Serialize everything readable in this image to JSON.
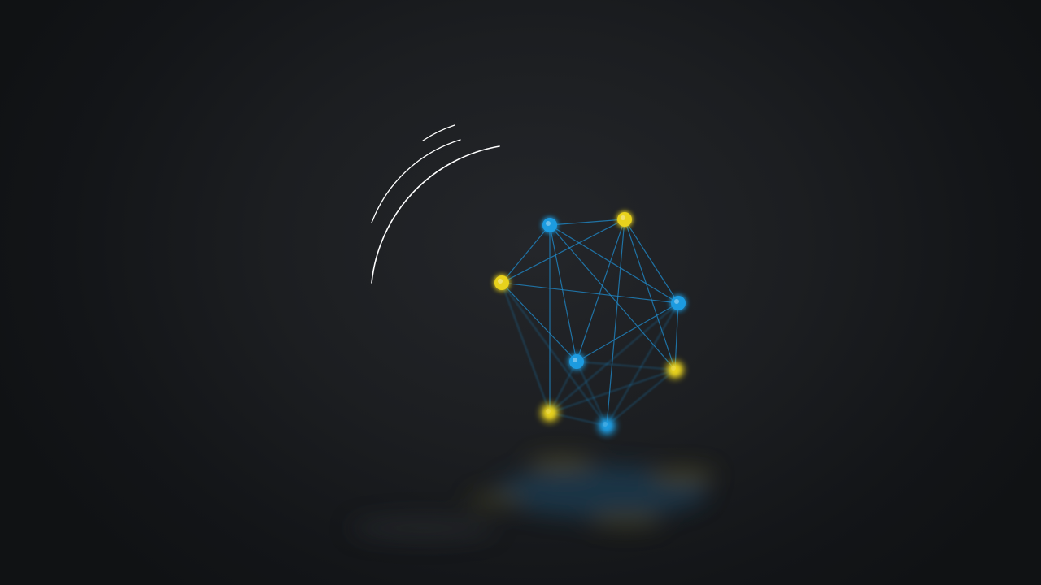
{
  "scene": {
    "description_free": true,
    "background_color": "#1a1c1f",
    "vignette_color": "#0f1113",
    "arc_color": "#ffffff",
    "edge_color": "#1f86c4",
    "node_colors": {
      "blue": "#1e9be0",
      "yellow": "#e8d21a"
    },
    "network": {
      "nodes": [
        {
          "id": "n1",
          "color": "blue",
          "blur": 0.6
        },
        {
          "id": "n2",
          "color": "yellow",
          "blur": 0.6
        },
        {
          "id": "n3",
          "color": "yellow",
          "blur": 0.8
        },
        {
          "id": "n4",
          "color": "blue",
          "blur": 1.0
        },
        {
          "id": "n5",
          "color": "blue",
          "blur": 1.4
        },
        {
          "id": "n6",
          "color": "yellow",
          "blur": 2.2
        },
        {
          "id": "n7",
          "color": "yellow",
          "blur": 2.6
        },
        {
          "id": "n8",
          "color": "blue",
          "blur": 2.4
        }
      ],
      "edges": [
        [
          "n1",
          "n2"
        ],
        [
          "n1",
          "n3"
        ],
        [
          "n1",
          "n4"
        ],
        [
          "n1",
          "n5"
        ],
        [
          "n1",
          "n6"
        ],
        [
          "n1",
          "n7"
        ],
        [
          "n2",
          "n3"
        ],
        [
          "n2",
          "n4"
        ],
        [
          "n2",
          "n5"
        ],
        [
          "n2",
          "n6"
        ],
        [
          "n2",
          "n8"
        ],
        [
          "n3",
          "n4"
        ],
        [
          "n3",
          "n5"
        ],
        [
          "n3",
          "n7"
        ],
        [
          "n3",
          "n8"
        ],
        [
          "n4",
          "n5"
        ],
        [
          "n4",
          "n6"
        ],
        [
          "n4",
          "n7"
        ],
        [
          "n4",
          "n8"
        ],
        [
          "n5",
          "n6"
        ],
        [
          "n5",
          "n7"
        ],
        [
          "n5",
          "n8"
        ],
        [
          "n6",
          "n7"
        ],
        [
          "n6",
          "n8"
        ],
        [
          "n7",
          "n8"
        ]
      ]
    }
  }
}
